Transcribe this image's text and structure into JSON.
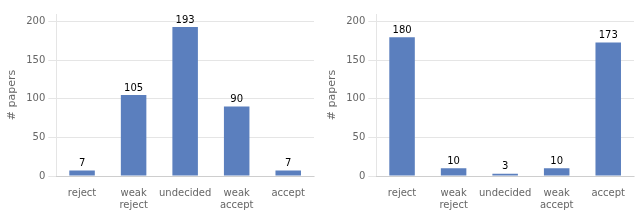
{
  "chart_data": [
    {
      "type": "bar",
      "categories": [
        "reject",
        "weak\nreject",
        "undecided",
        "weak\naccept",
        "accept"
      ],
      "values": [
        7,
        105,
        193,
        90,
        7
      ],
      "color": "#5b7fbe",
      "ylabel": "# papers",
      "ylim": [
        0,
        210
      ],
      "yticks": [
        0,
        50,
        100,
        150,
        200
      ],
      "grid": true,
      "data_labels": true
    },
    {
      "type": "bar",
      "categories": [
        "reject",
        "weak\nreject",
        "undecided",
        "weak\naccept",
        "accept"
      ],
      "values": [
        180,
        10,
        3,
        10,
        173
      ],
      "color": "#5b7fbe",
      "ylabel": "# papers",
      "ylim": [
        0,
        210
      ],
      "yticks": [
        0,
        50,
        100,
        150,
        200
      ],
      "grid": true,
      "data_labels": true
    }
  ]
}
